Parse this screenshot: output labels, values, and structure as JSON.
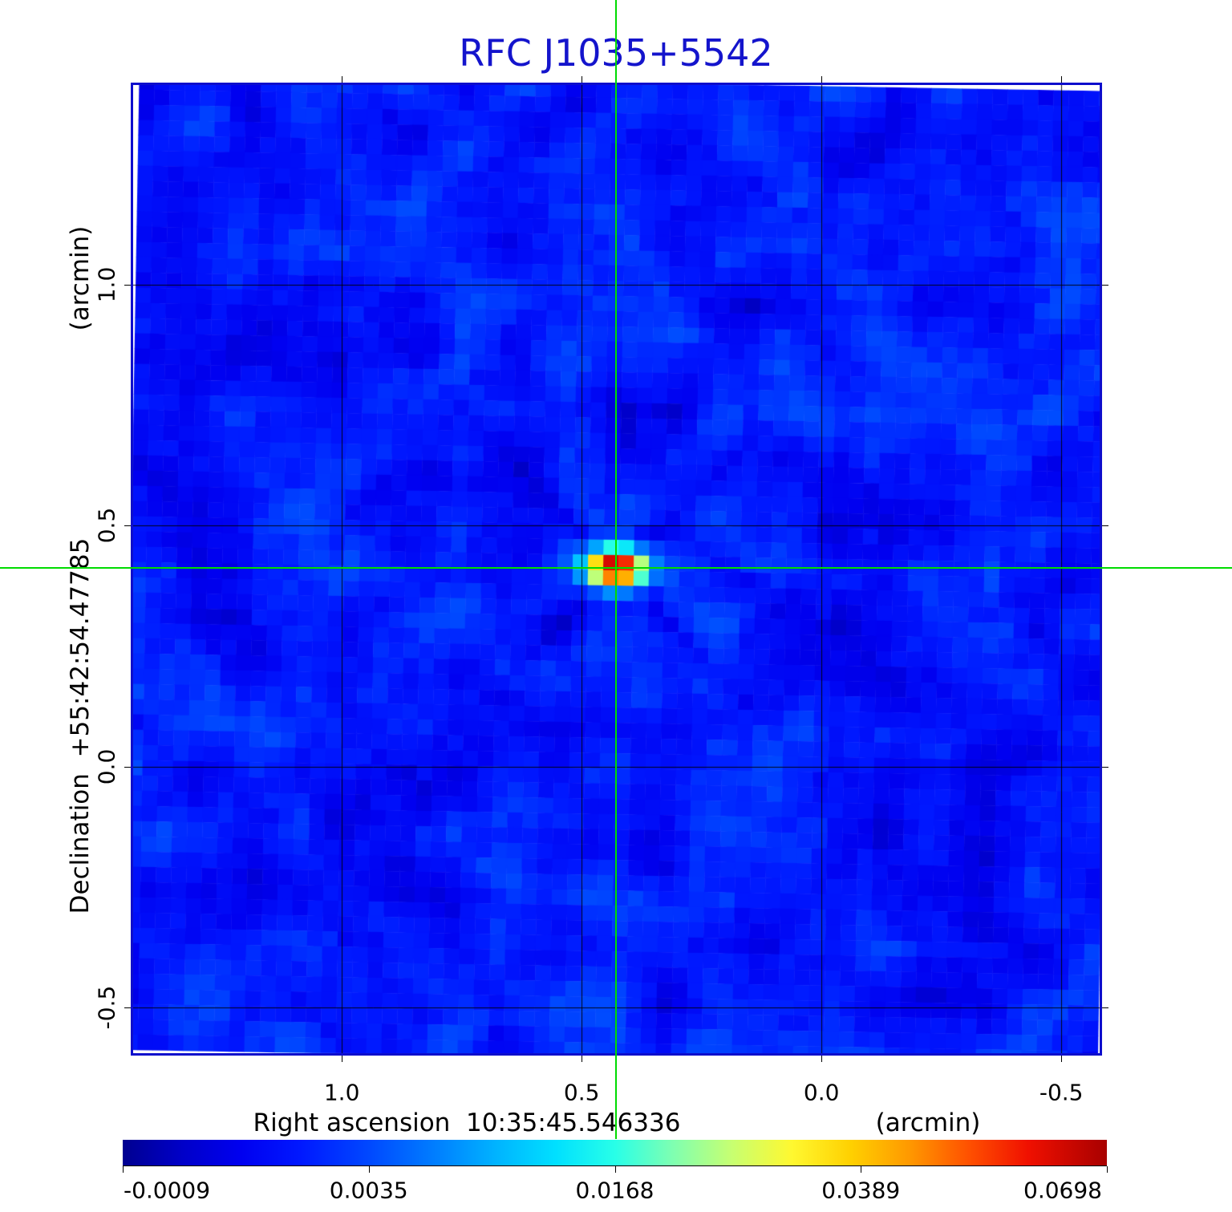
{
  "title": {
    "text": "RFC J1035+5542",
    "color": "#1414cc"
  },
  "x_axis": {
    "label": "Right ascension  10:35:45.546336",
    "unit": "(arcmin)",
    "tick_labels": [
      "1.0",
      "0.5",
      "0.0",
      "-0.5"
    ]
  },
  "y_axis": {
    "label": "Declination  +55:42:54.47785",
    "unit": "(arcmin)",
    "tick_labels": [
      "1.0",
      "0.5",
      "0.0",
      "-0.5"
    ]
  },
  "colorbar": {
    "tick_labels": [
      "-0.0009",
      "0.0035",
      "0.0168",
      "0.0389",
      "0.0698"
    ],
    "gradient_fracs": [
      0,
      0.06,
      0.12,
      0.18,
      0.25,
      0.32,
      0.38,
      0.44,
      0.5,
      0.56,
      0.62,
      0.68,
      0.74,
      0.8,
      0.86,
      0.92,
      1.0
    ],
    "gradient_colors": [
      "#000090",
      "#0000c8",
      "#0000f0",
      "#0018ff",
      "#0048ff",
      "#0080ff",
      "#00b4ff",
      "#00e0ff",
      "#28ffe8",
      "#80ffb0",
      "#c8ff70",
      "#fff830",
      "#ffd000",
      "#ff9800",
      "#ff5000",
      "#f01000",
      "#a80000"
    ]
  },
  "crosshair": {
    "color": "#00dc00"
  },
  "frame_color": "#0e0ecc",
  "grid_color": "#000000",
  "chart_data": {
    "type": "heatmap",
    "title": "RFC J1035+5542",
    "xlabel": "Right ascension  10:35:45.546336 (arcmin)",
    "ylabel": "Declination  +55:42:54.47785 (arcmin)",
    "x_ticks": [
      1.0,
      0.5,
      0.0,
      -0.5
    ],
    "y_ticks": [
      1.0,
      0.5,
      0.0,
      -0.5
    ],
    "x_range": [
      1.44,
      -0.585
    ],
    "y_range": [
      -0.6,
      1.42
    ],
    "grid": true,
    "colorbar_ticks": [
      -0.0009,
      0.0035,
      0.0168,
      0.0389,
      0.0698
    ],
    "value_range": [
      -0.0009,
      0.0698
    ],
    "source": {
      "x_arcmin": 0.428,
      "y_arcmin": 0.413,
      "peak": 0.0698,
      "description": "compact bright elliptical source at field center, marked by green crosshair"
    },
    "background_level": 0.002,
    "noise_sigma": 0.0012,
    "colormap": "rainbow: dark blue -> blue -> cyan -> yellow -> orange -> dark red"
  }
}
